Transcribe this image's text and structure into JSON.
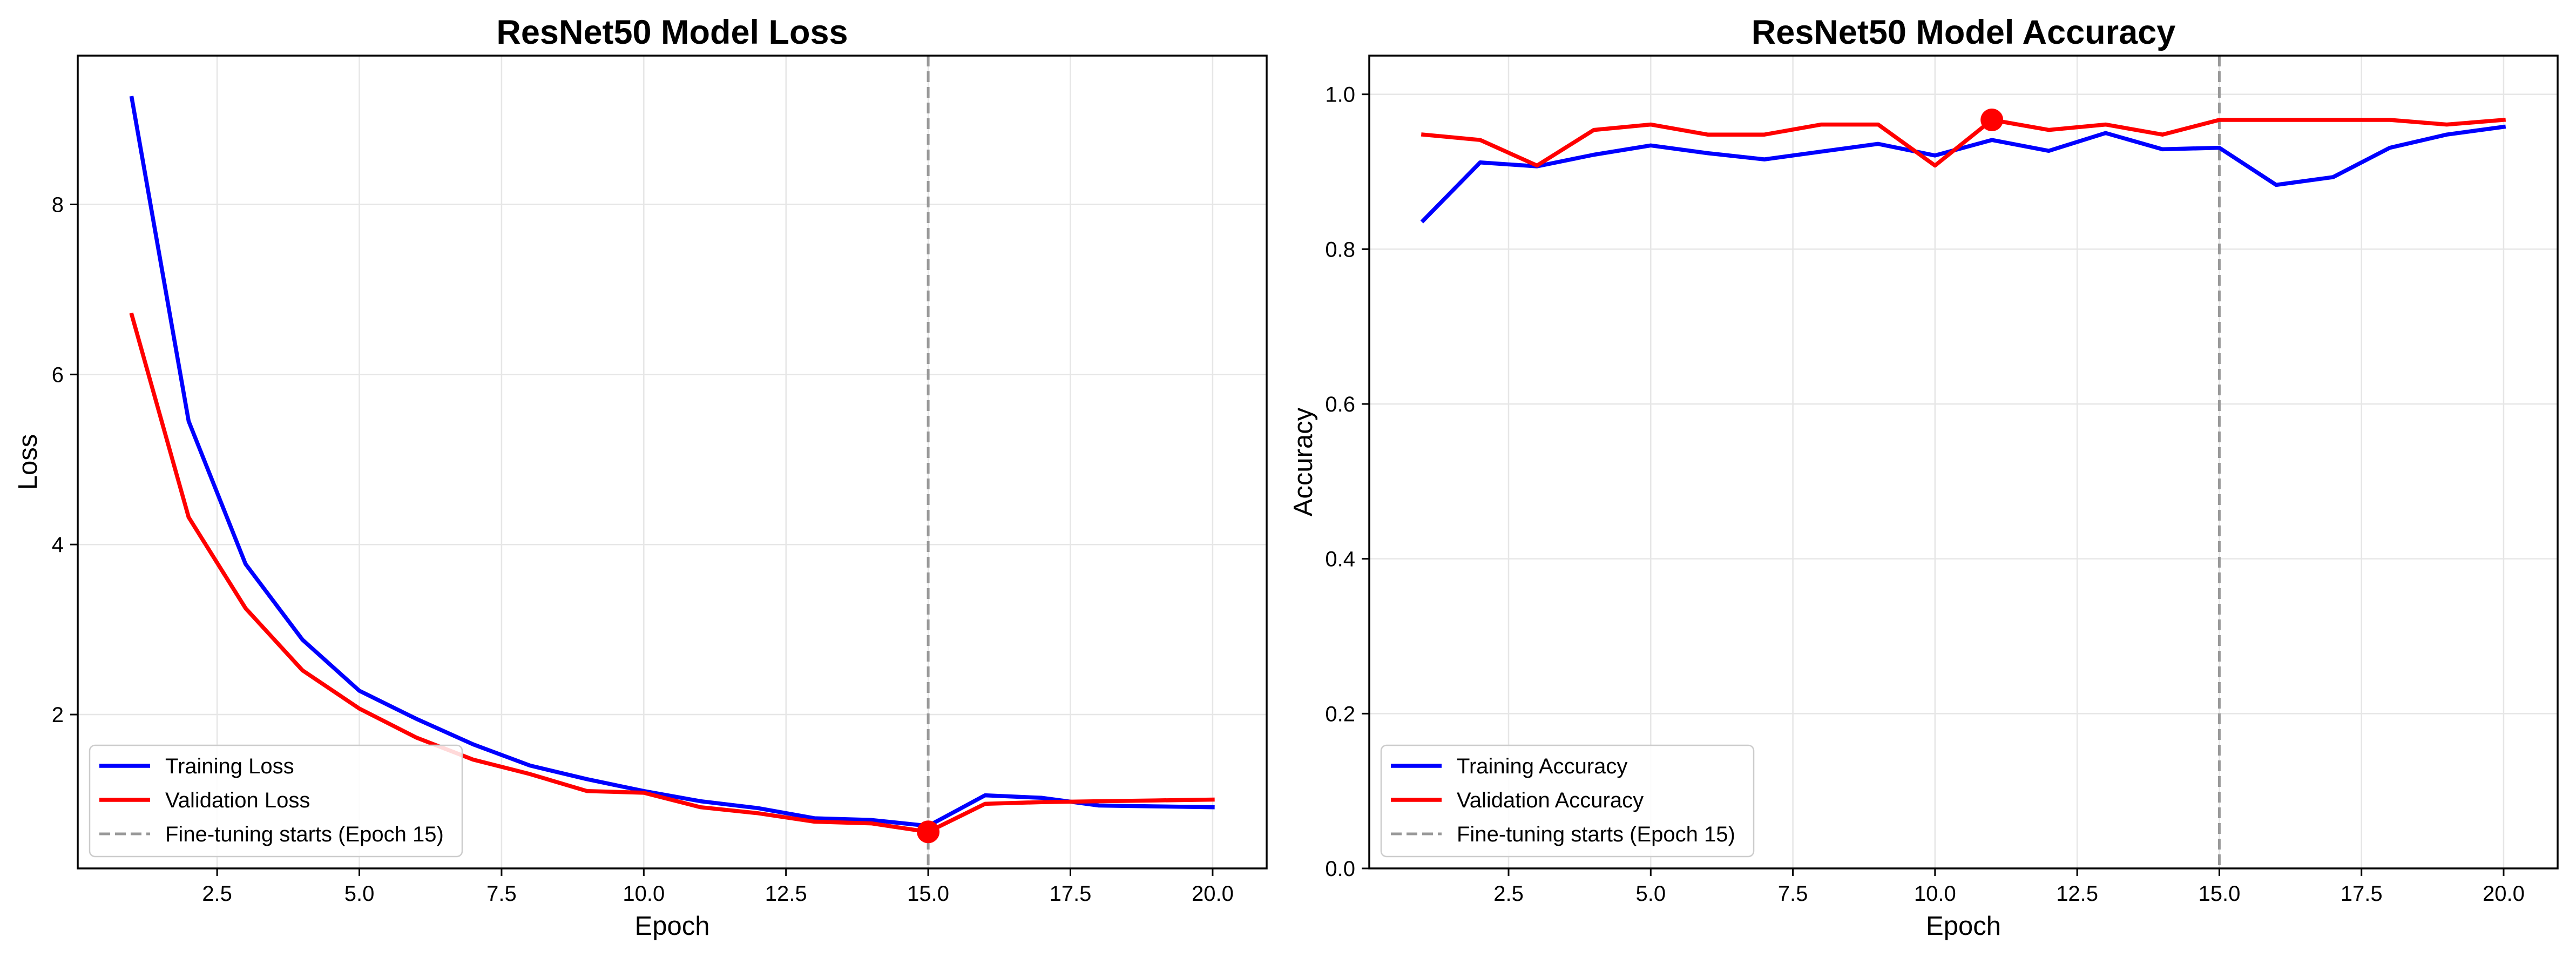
{
  "chart_data": [
    {
      "type": "line",
      "title": "ResNet50 Model Loss",
      "xlabel": "Epoch",
      "ylabel": "Loss",
      "xlim": [
        0.05,
        20.95
      ],
      "ylim": [
        0.19,
        9.75
      ],
      "xticks": [
        2.5,
        5.0,
        7.5,
        10.0,
        12.5,
        15.0,
        17.5,
        20.0
      ],
      "xtick_labels": [
        "2.5",
        "5.0",
        "7.5",
        "10.0",
        "12.5",
        "15.0",
        "17.5",
        "20.0"
      ],
      "yticks": [
        2,
        4,
        6,
        8
      ],
      "ytick_labels": [
        "2",
        "4",
        "6",
        "8"
      ],
      "grid": true,
      "legend_position": "lower-left",
      "x": [
        1,
        2,
        3,
        4,
        5,
        6,
        7,
        8,
        9,
        10,
        11,
        12,
        13,
        14,
        15,
        16,
        17,
        18,
        19,
        20
      ],
      "series": [
        {
          "name": "Training Loss",
          "color": "#0000ff",
          "values": [
            9.25,
            5.45,
            3.77,
            2.88,
            2.28,
            1.95,
            1.65,
            1.4,
            1.24,
            1.1,
            0.98,
            0.9,
            0.78,
            0.76,
            0.69,
            1.05,
            1.02,
            0.93,
            0.92,
            0.91
          ]
        },
        {
          "name": "Validation Loss",
          "color": "#ff0000",
          "values": [
            6.7,
            4.32,
            3.25,
            2.52,
            2.07,
            1.73,
            1.47,
            1.3,
            1.1,
            1.08,
            0.91,
            0.84,
            0.74,
            0.72,
            0.62,
            0.95,
            0.97,
            0.98,
            0.99,
            1.0
          ]
        }
      ],
      "vline": {
        "x": 15,
        "label": "Fine-tuning starts (Epoch 15)",
        "color": "#999999"
      },
      "highlight": {
        "x": 15,
        "y": 0.62,
        "color": "#ff0000"
      }
    },
    {
      "type": "line",
      "title": "ResNet50 Model Accuracy",
      "xlabel": "Epoch",
      "ylabel": "Accuracy",
      "xlim": [
        0.05,
        20.95
      ],
      "ylim": [
        0.0,
        1.05
      ],
      "xticks": [
        2.5,
        5.0,
        7.5,
        10.0,
        12.5,
        15.0,
        17.5,
        20.0
      ],
      "xtick_labels": [
        "2.5",
        "5.0",
        "7.5",
        "10.0",
        "12.5",
        "15.0",
        "17.5",
        "20.0"
      ],
      "yticks": [
        0.0,
        0.2,
        0.4,
        0.6,
        0.8,
        1.0
      ],
      "ytick_labels": [
        "0.0",
        "0.2",
        "0.4",
        "0.6",
        "0.8",
        "1.0"
      ],
      "grid": true,
      "legend_position": "lower-left",
      "x": [
        1,
        2,
        3,
        4,
        5,
        6,
        7,
        8,
        9,
        10,
        11,
        12,
        13,
        14,
        15,
        16,
        17,
        18,
        19,
        20
      ],
      "series": [
        {
          "name": "Training Accuracy",
          "color": "#0000ff",
          "values": [
            0.837,
            0.912,
            0.907,
            0.922,
            0.934,
            0.924,
            0.916,
            0.926,
            0.936,
            0.921,
            0.941,
            0.927,
            0.95,
            0.929,
            0.931,
            0.883,
            0.893,
            0.931,
            0.948,
            0.958
          ]
        },
        {
          "name": "Validation Accuracy",
          "color": "#ff0000",
          "values": [
            0.948,
            0.941,
            0.908,
            0.954,
            0.961,
            0.948,
            0.948,
            0.961,
            0.961,
            0.908,
            0.967,
            0.954,
            0.961,
            0.948,
            0.967,
            0.967,
            0.967,
            0.967,
            0.961,
            0.967
          ]
        }
      ],
      "vline": {
        "x": 15,
        "label": "Fine-tuning starts (Epoch 15)",
        "color": "#999999"
      },
      "highlight": {
        "x": 11,
        "y": 0.967,
        "color": "#ff0000"
      }
    }
  ]
}
